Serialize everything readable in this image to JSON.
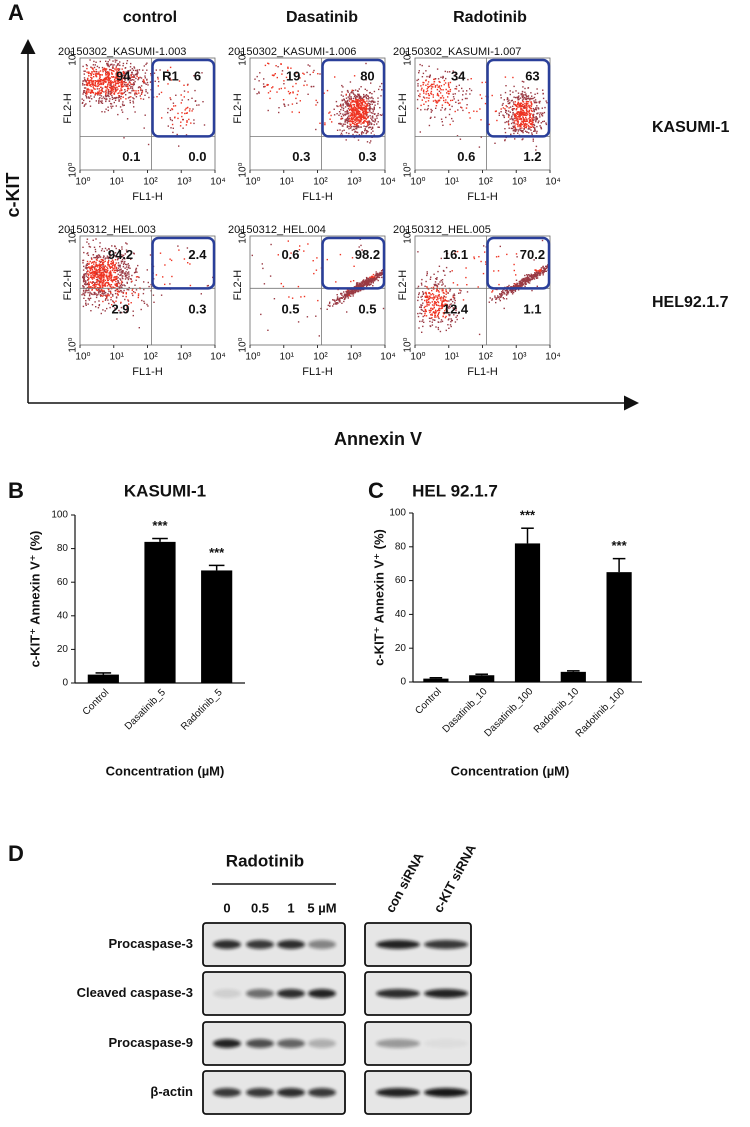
{
  "panel_a": {
    "label": "A",
    "columns": [
      "control",
      "Dasatinib",
      "Radotinib"
    ],
    "rows": [
      "KASUMI-1",
      "HEL92.1.7"
    ],
    "y_axis": "c-KIT",
    "x_axis": "Annexin V",
    "plot_x_label": "FL1-H",
    "plot_y_label": "FL2-H",
    "ticks": [
      "10⁰",
      "10¹",
      "10²",
      "10³",
      "10⁴"
    ],
    "plots": [
      [
        {
          "file": "20150302_KASUMI-1.003",
          "gate_label": "R1",
          "quadrants": [
            "94",
            "6",
            "0.1",
            "0.0"
          ]
        },
        {
          "file": "20150302_KASUMI-1.006",
          "quadrants": [
            "19",
            "80",
            "0.3",
            "0.3"
          ]
        },
        {
          "file": "20150302_KASUMI-1.007",
          "quadrants": [
            "34",
            "63",
            "0.6",
            "1.2"
          ]
        }
      ],
      [
        {
          "file": "20150312_HEL.003",
          "quadrants": [
            "94.2",
            "2.4",
            "2.9",
            "0.3"
          ]
        },
        {
          "file": "20150312_HEL.004",
          "quadrants": [
            "0.6",
            "98.2",
            "0.5",
            "0.5"
          ]
        },
        {
          "file": "20150312_HEL.005",
          "quadrants": [
            "16.1",
            "70.2",
            "12.4",
            "1.1"
          ]
        }
      ]
    ]
  },
  "chart_data": [
    {
      "type": "bar",
      "panel": "B",
      "title": "KASUMI-1",
      "y_label": "c-KIT⁺ Annexin V⁺ (%)",
      "x_label": "Concentration (µM)",
      "categories": [
        "Control",
        "Dasatinib_5",
        "Radotinib_5"
      ],
      "values": [
        5,
        84,
        67
      ],
      "errors": [
        1,
        2,
        3
      ],
      "significance": [
        null,
        "***",
        "***"
      ],
      "color": "#000000",
      "ylim": [
        0,
        100
      ],
      "yticks": [
        0,
        20,
        40,
        60,
        80,
        100
      ]
    },
    {
      "type": "bar",
      "panel": "C",
      "title": "HEL 92.1.7",
      "y_label": "c-KIT⁺ Annexin V⁺ (%)",
      "x_label": "Concentration (µM)",
      "categories": [
        "Control",
        "Dasatinib_10",
        "Dasatinib_100",
        "Radotinib_10",
        "Radotinib_100"
      ],
      "values": [
        2,
        4,
        82,
        6,
        65
      ],
      "errors": [
        0.5,
        0.6,
        9,
        0.6,
        8
      ],
      "significance": [
        null,
        null,
        "***",
        null,
        "***"
      ],
      "color": "#000000",
      "ylim": [
        0,
        100
      ],
      "yticks": [
        0,
        20,
        40,
        60,
        80,
        100
      ]
    }
  ],
  "panel_d": {
    "label": "D",
    "treatment": "Radotinib",
    "doses": [
      "0",
      "0.5",
      "1",
      "5 µM"
    ],
    "sirna": [
      "con siRNA",
      "c-KIT siRNA"
    ],
    "proteins": [
      "Procaspase-3",
      "Cleaved caspase-3",
      "Procaspase-9",
      "β-actin"
    ]
  }
}
